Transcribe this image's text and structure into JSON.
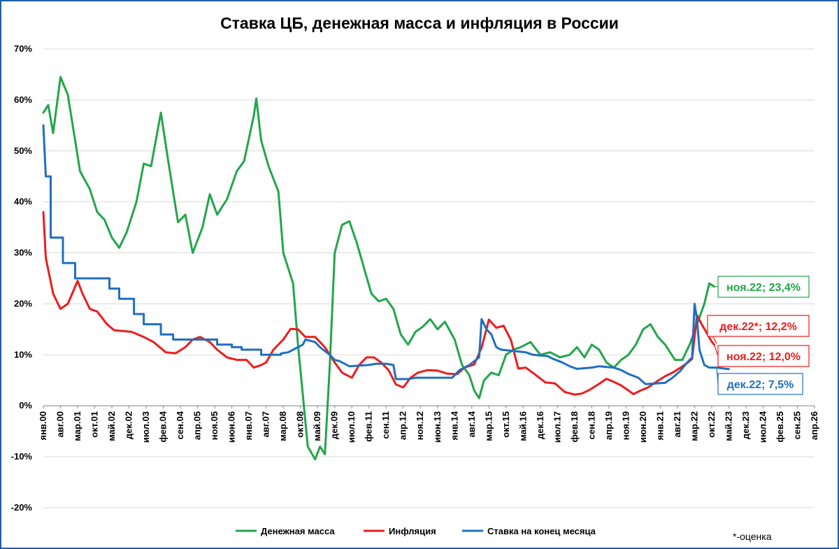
{
  "chart_data": {
    "type": "line",
    "title": "Ставка ЦБ, денежная масса и инфляция в России",
    "xlabel": "",
    "ylabel": "",
    "ylim": [
      -20,
      70
    ],
    "yticks": [
      "70%",
      "60%",
      "50%",
      "40%",
      "30%",
      "20%",
      "10%",
      "0%",
      "-10%",
      "-20%"
    ],
    "ytick_values": [
      70,
      60,
      50,
      40,
      30,
      20,
      10,
      0,
      -10,
      -20
    ],
    "grid": true,
    "legend_position": "bottom",
    "x_start": "2000-01",
    "x_end": "2026-04",
    "x_tick_interval_months": 7,
    "xticks": [
      "янв.00",
      "авг.00",
      "мар.01",
      "окт.01",
      "май.02",
      "дек.02",
      "июл.03",
      "фев.04",
      "сен.04",
      "апр.05",
      "ноя.05",
      "июн.06",
      "янв.07",
      "авг.07",
      "мар.08",
      "окт.08",
      "май.09",
      "дек.09",
      "июл.10",
      "фев.11",
      "сен.11",
      "апр.12",
      "ноя.12",
      "июн.13",
      "янв.14",
      "авг.14",
      "мар.15",
      "окт.15",
      "май.16",
      "дек.16",
      "июл.17",
      "фев.18",
      "сен.18",
      "апр.19",
      "ноя.19",
      "июн.20",
      "янв.21",
      "авг.21",
      "мар.22",
      "окт.22",
      "май.23",
      "дек.23",
      "июл.24",
      "фев.25",
      "сен.25",
      "апр.26"
    ],
    "series": [
      {
        "name": "Денежная масса",
        "color": "#22a64a",
        "points": [
          [
            "2000-01",
            57.5
          ],
          [
            "2000-03",
            59
          ],
          [
            "2000-05",
            53.5
          ],
          [
            "2000-08",
            64.5
          ],
          [
            "2000-11",
            61
          ],
          [
            "2001-02",
            52
          ],
          [
            "2001-04",
            46
          ],
          [
            "2001-08",
            42.5
          ],
          [
            "2001-11",
            38
          ],
          [
            "2002-02",
            36.5
          ],
          [
            "2002-05",
            33
          ],
          [
            "2002-08",
            31
          ],
          [
            "2002-11",
            34
          ],
          [
            "2003-03",
            40
          ],
          [
            "2003-06",
            47.5
          ],
          [
            "2003-09",
            47
          ],
          [
            "2004-01",
            57.5
          ],
          [
            "2004-04",
            48
          ],
          [
            "2004-08",
            36
          ],
          [
            "2004-11",
            37.5
          ],
          [
            "2005-02",
            30
          ],
          [
            "2005-06",
            35
          ],
          [
            "2005-09",
            41.5
          ],
          [
            "2005-12",
            37.5
          ],
          [
            "2006-04",
            40.5
          ],
          [
            "2006-08",
            46
          ],
          [
            "2006-11",
            48
          ],
          [
            "2007-03",
            57
          ],
          [
            "2007-04",
            60.3
          ],
          [
            "2007-06",
            52
          ],
          [
            "2007-09",
            47
          ],
          [
            "2008-01",
            42
          ],
          [
            "2008-03",
            30
          ],
          [
            "2008-05",
            27
          ],
          [
            "2008-07",
            24
          ],
          [
            "2008-09",
            12
          ],
          [
            "2008-11",
            2
          ],
          [
            "2009-01",
            -8
          ],
          [
            "2009-04",
            -10.5
          ],
          [
            "2009-06",
            -8
          ],
          [
            "2009-08",
            -9.5
          ],
          [
            "2009-10",
            8
          ],
          [
            "2009-12",
            30
          ],
          [
            "2010-03",
            35.5
          ],
          [
            "2010-06",
            36.2
          ],
          [
            "2010-09",
            32
          ],
          [
            "2010-12",
            27
          ],
          [
            "2011-03",
            22
          ],
          [
            "2011-06",
            20.5
          ],
          [
            "2011-09",
            21
          ],
          [
            "2011-12",
            19
          ],
          [
            "2012-03",
            14
          ],
          [
            "2012-06",
            12
          ],
          [
            "2012-09",
            14.5
          ],
          [
            "2012-12",
            15.5
          ],
          [
            "2013-03",
            17
          ],
          [
            "2013-06",
            15
          ],
          [
            "2013-09",
            16.5
          ],
          [
            "2014-01",
            13
          ],
          [
            "2014-04",
            8
          ],
          [
            "2014-07",
            6
          ],
          [
            "2014-09",
            3
          ],
          [
            "2014-11",
            1.5
          ],
          [
            "2015-01",
            5
          ],
          [
            "2015-04",
            6.5
          ],
          [
            "2015-07",
            6
          ],
          [
            "2015-10",
            10
          ],
          [
            "2016-01",
            11
          ],
          [
            "2016-04",
            11.5
          ],
          [
            "2016-08",
            12.5
          ],
          [
            "2016-12",
            10
          ],
          [
            "2017-04",
            10.5
          ],
          [
            "2017-08",
            9.5
          ],
          [
            "2017-12",
            10
          ],
          [
            "2018-03",
            11.5
          ],
          [
            "2018-06",
            9.5
          ],
          [
            "2018-09",
            12
          ],
          [
            "2018-12",
            11
          ],
          [
            "2019-03",
            8.5
          ],
          [
            "2019-06",
            7.5
          ],
          [
            "2019-09",
            9
          ],
          [
            "2019-12",
            10
          ],
          [
            "2020-03",
            12
          ],
          [
            "2020-06",
            15
          ],
          [
            "2020-09",
            16
          ],
          [
            "2020-12",
            13.5
          ],
          [
            "2021-03",
            12
          ],
          [
            "2021-07",
            9
          ],
          [
            "2021-10",
            9
          ],
          [
            "2022-01",
            12
          ],
          [
            "2022-04",
            16
          ],
          [
            "2022-07",
            20
          ],
          [
            "2022-09",
            24
          ],
          [
            "2022-11",
            23.4
          ]
        ]
      },
      {
        "name": "Инфляция",
        "color": "#ee1c1c",
        "points": [
          [
            "2000-01",
            38
          ],
          [
            "2000-02",
            29
          ],
          [
            "2000-05",
            22
          ],
          [
            "2000-08",
            19
          ],
          [
            "2000-11",
            20
          ],
          [
            "2001-03",
            24.5
          ],
          [
            "2001-05",
            22
          ],
          [
            "2001-08",
            19
          ],
          [
            "2001-11",
            18.5
          ],
          [
            "2002-03",
            16
          ],
          [
            "2002-06",
            14.8
          ],
          [
            "2002-09",
            14.7
          ],
          [
            "2003-01",
            14.5
          ],
          [
            "2003-06",
            13.5
          ],
          [
            "2003-10",
            12.5
          ],
          [
            "2004-03",
            10.5
          ],
          [
            "2004-07",
            10.3
          ],
          [
            "2004-11",
            11.5
          ],
          [
            "2005-02",
            13
          ],
          [
            "2005-05",
            13.5
          ],
          [
            "2005-09",
            12.5
          ],
          [
            "2005-12",
            11
          ],
          [
            "2006-04",
            9.5
          ],
          [
            "2006-08",
            9
          ],
          [
            "2006-12",
            9
          ],
          [
            "2007-03",
            7.5
          ],
          [
            "2007-06",
            8
          ],
          [
            "2007-08",
            8.5
          ],
          [
            "2007-11",
            11
          ],
          [
            "2008-03",
            13
          ],
          [
            "2008-06",
            15.1
          ],
          [
            "2008-09",
            15
          ],
          [
            "2008-12",
            13.5
          ],
          [
            "2009-04",
            13.5
          ],
          [
            "2009-08",
            11.5
          ],
          [
            "2009-12",
            8.5
          ],
          [
            "2010-03",
            6.5
          ],
          [
            "2010-07",
            5.5
          ],
          [
            "2010-10",
            8
          ],
          [
            "2011-01",
            9.5
          ],
          [
            "2011-04",
            9.5
          ],
          [
            "2011-07",
            8.5
          ],
          [
            "2011-10",
            7
          ],
          [
            "2012-01",
            4.2
          ],
          [
            "2012-04",
            3.6
          ],
          [
            "2012-07",
            5.5
          ],
          [
            "2012-10",
            6.5
          ],
          [
            "2013-02",
            7
          ],
          [
            "2013-06",
            6.9
          ],
          [
            "2013-10",
            6.3
          ],
          [
            "2014-02",
            6.2
          ],
          [
            "2014-05",
            7.5
          ],
          [
            "2014-09",
            8.1
          ],
          [
            "2014-12",
            11.4
          ],
          [
            "2015-03",
            16.9
          ],
          [
            "2015-06",
            15.3
          ],
          [
            "2015-09",
            15.7
          ],
          [
            "2015-12",
            12.9
          ],
          [
            "2016-03",
            7.3
          ],
          [
            "2016-06",
            7.5
          ],
          [
            "2016-10",
            6.1
          ],
          [
            "2017-02",
            4.6
          ],
          [
            "2017-06",
            4.4
          ],
          [
            "2017-10",
            2.7
          ],
          [
            "2018-02",
            2.2
          ],
          [
            "2018-05",
            2.4
          ],
          [
            "2018-08",
            3.1
          ],
          [
            "2018-12",
            4.3
          ],
          [
            "2019-03",
            5.3
          ],
          [
            "2019-06",
            4.7
          ],
          [
            "2019-09",
            4
          ],
          [
            "2019-12",
            3
          ],
          [
            "2020-02",
            2.3
          ],
          [
            "2020-05",
            3
          ],
          [
            "2020-08",
            3.6
          ],
          [
            "2020-12",
            4.9
          ],
          [
            "2021-03",
            5.8
          ],
          [
            "2021-06",
            6.5
          ],
          [
            "2021-09",
            7.4
          ],
          [
            "2021-12",
            8.4
          ],
          [
            "2022-02",
            9.2
          ],
          [
            "2022-04",
            17.8
          ],
          [
            "2022-06",
            15.9
          ],
          [
            "2022-08",
            14.3
          ],
          [
            "2022-10",
            12.6
          ],
          [
            "2022-11",
            12.0
          ]
        ]
      },
      {
        "name": "Ставка на конец месяца",
        "color": "#1f6fc1",
        "points": [
          [
            "2000-01",
            55
          ],
          [
            "2000-02",
            45
          ],
          [
            "2000-04",
            45
          ],
          [
            "2000-04",
            33
          ],
          [
            "2000-09",
            33
          ],
          [
            "2000-09",
            28
          ],
          [
            "2001-02",
            28
          ],
          [
            "2001-02",
            25
          ],
          [
            "2002-04",
            25
          ],
          [
            "2002-04",
            23
          ],
          [
            "2002-08",
            23
          ],
          [
            "2002-08",
            21
          ],
          [
            "2003-02",
            21
          ],
          [
            "2003-02",
            18
          ],
          [
            "2003-06",
            18
          ],
          [
            "2003-06",
            16
          ],
          [
            "2004-01",
            16
          ],
          [
            "2004-01",
            14
          ],
          [
            "2004-06",
            14
          ],
          [
            "2004-06",
            13
          ],
          [
            "2005-12",
            13
          ],
          [
            "2005-12",
            12
          ],
          [
            "2006-06",
            12
          ],
          [
            "2006-06",
            11.5
          ],
          [
            "2006-10",
            11.5
          ],
          [
            "2006-10",
            11
          ],
          [
            "2007-06",
            11
          ],
          [
            "2007-06",
            10
          ],
          [
            "2008-02",
            10
          ],
          [
            "2008-02",
            10.25
          ],
          [
            "2008-05",
            10.5
          ],
          [
            "2008-06",
            10.75
          ],
          [
            "2008-07",
            11
          ],
          [
            "2008-11",
            12
          ],
          [
            "2008-12",
            13
          ],
          [
            "2009-04",
            12.5
          ],
          [
            "2009-06",
            11.5
          ],
          [
            "2009-08",
            10.75
          ],
          [
            "2009-10",
            10
          ],
          [
            "2009-12",
            9
          ],
          [
            "2010-02",
            8.75
          ],
          [
            "2010-04",
            8.25
          ],
          [
            "2010-06",
            7.75
          ],
          [
            "2011-02",
            8
          ],
          [
            "2011-05",
            8.25
          ],
          [
            "2011-09",
            8.25
          ],
          [
            "2011-12",
            8
          ],
          [
            "2012-01",
            5.25
          ],
          [
            "2012-06",
            5.25
          ],
          [
            "2012-09",
            5.5
          ],
          [
            "2013-12",
            5.5
          ],
          [
            "2014-03",
            7
          ],
          [
            "2014-07",
            8
          ],
          [
            "2014-11",
            9.5
          ],
          [
            "2014-12",
            17
          ],
          [
            "2015-02",
            15
          ],
          [
            "2015-04",
            14
          ],
          [
            "2015-06",
            11.5
          ],
          [
            "2015-08",
            11
          ],
          [
            "2016-06",
            10.5
          ],
          [
            "2016-09",
            10
          ],
          [
            "2017-03",
            9.75
          ],
          [
            "2017-05",
            9.25
          ],
          [
            "2017-09",
            8.5
          ],
          [
            "2017-12",
            7.75
          ],
          [
            "2018-03",
            7.25
          ],
          [
            "2018-09",
            7.5
          ],
          [
            "2018-12",
            7.75
          ],
          [
            "2019-06",
            7.5
          ],
          [
            "2019-09",
            7
          ],
          [
            "2019-12",
            6.25
          ],
          [
            "2020-04",
            5.5
          ],
          [
            "2020-07",
            4.25
          ],
          [
            "2021-03",
            4.5
          ],
          [
            "2021-06",
            5.5
          ],
          [
            "2021-09",
            6.75
          ],
          [
            "2021-12",
            8.5
          ],
          [
            "2022-02",
            9.5
          ],
          [
            "2022-03",
            20
          ],
          [
            "2022-04",
            17
          ],
          [
            "2022-05",
            11
          ],
          [
            "2022-06",
            9.5
          ],
          [
            "2022-07",
            8
          ],
          [
            "2022-09",
            7.5
          ],
          [
            "2022-12",
            7.5
          ],
          [
            "2023-05",
            7.2
          ]
        ]
      }
    ]
  },
  "callouts": [
    {
      "text": "ноя.22; 23,4%",
      "color": "#22a64a",
      "series": 0,
      "at": "2022-11",
      "value": 23.4
    },
    {
      "text": "дек.22*; 12,2%",
      "color": "#ee1c1c",
      "series": 1,
      "at": "2022-12",
      "value": 12.2
    },
    {
      "text": "ноя.22; 12,0%",
      "color": "#ee1c1c",
      "series": 1,
      "at": "2022-11",
      "value": 12.0
    },
    {
      "text": "дек.22; 7,5%",
      "color": "#1f6fc1",
      "series": 2,
      "at": "2022-12",
      "value": 7.5
    }
  ],
  "footnote": "*-оценка"
}
